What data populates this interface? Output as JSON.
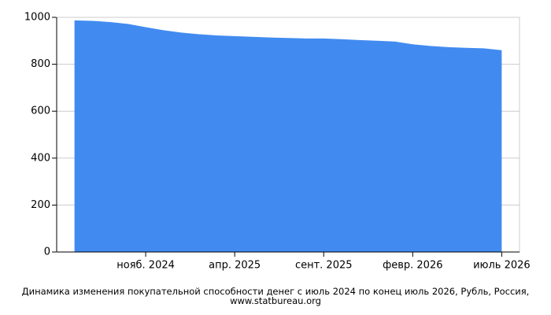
{
  "chart_data": {
    "type": "area",
    "title": "Динамика изменения покупательной способности денег с июль 2024 по конец июль 2026, Рубль, Россия, www.statbureau.org",
    "categories": [
      null,
      null,
      null,
      null,
      "нояб. 2024",
      null,
      null,
      null,
      null,
      "апр. 2025",
      null,
      null,
      null,
      null,
      "сент. 2025",
      null,
      null,
      null,
      null,
      "февр. 2026",
      null,
      null,
      null,
      null,
      "июль 2026"
    ],
    "values": [
      987,
      985,
      980,
      972,
      958,
      945,
      935,
      928,
      923,
      920,
      917,
      914,
      912,
      910,
      910,
      907,
      903,
      900,
      897,
      885,
      878,
      873,
      870,
      868,
      860
    ],
    "color": "#418bf0",
    "ylim": [
      0,
      1000
    ],
    "yticks": [
      0,
      200,
      400,
      600,
      800,
      1000
    ],
    "grid": true
  }
}
